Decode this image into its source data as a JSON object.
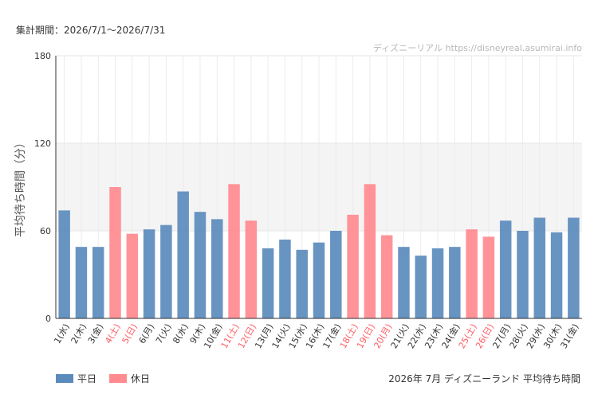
{
  "header": {
    "period": "集計期間：2026/7/1〜2026/7/31",
    "watermark": "ディズニーリアル https://disneyreal.asumirai.info"
  },
  "footer": {
    "title": "2026年 7月 ディズニーランド 平均待ち時間"
  },
  "legend": [
    {
      "label": "平日",
      "color": "#5b8bbd"
    },
    {
      "label": "休日",
      "color": "#ff8a8f"
    }
  ],
  "colors": {
    "weekday": "#5b8bbd",
    "holiday": "#ff8a8f",
    "holiday_label": "#ff5c63",
    "band": "#f4f4f4"
  },
  "chart_data": {
    "type": "bar",
    "ylabel": "平均待ち時間（分）",
    "ylim": [
      0,
      180
    ],
    "yticks": [
      0,
      60,
      120,
      180
    ],
    "shaded_band": [
      60,
      120
    ],
    "categories": [
      "1(水)",
      "2(木)",
      "3(金)",
      "4(土)",
      "5(日)",
      "6(月)",
      "7(火)",
      "8(水)",
      "9(木)",
      "10(金)",
      "11(土)",
      "12(日)",
      "13(月)",
      "14(火)",
      "15(水)",
      "16(木)",
      "17(金)",
      "18(土)",
      "19(日)",
      "20(月)",
      "21(火)",
      "22(水)",
      "23(木)",
      "24(金)",
      "25(土)",
      "26(日)",
      "27(月)",
      "28(火)",
      "29(水)",
      "30(木)",
      "31(金)"
    ],
    "holiday": [
      false,
      false,
      false,
      true,
      true,
      false,
      false,
      false,
      false,
      false,
      true,
      true,
      false,
      false,
      false,
      false,
      false,
      true,
      true,
      true,
      false,
      false,
      false,
      false,
      true,
      true,
      false,
      false,
      false,
      false,
      false
    ],
    "values": [
      74,
      49,
      49,
      90,
      58,
      61,
      64,
      87,
      73,
      68,
      92,
      67,
      48,
      54,
      47,
      52,
      60,
      71,
      92,
      57,
      49,
      43,
      48,
      49,
      61,
      56,
      67,
      60,
      69,
      59,
      69
    ]
  }
}
